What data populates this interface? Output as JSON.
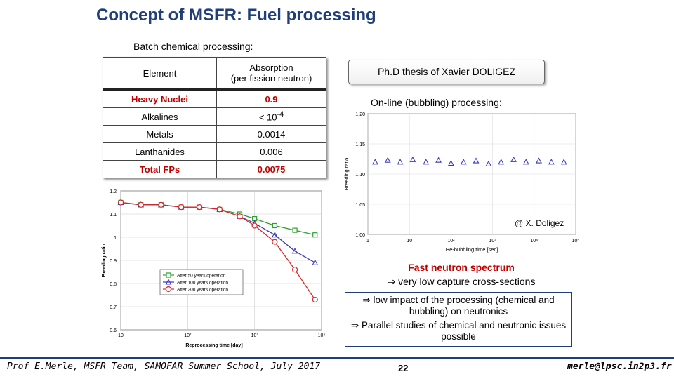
{
  "title": "Concept of MSFR: Fuel processing",
  "batch_label": "Batch chemical processing:",
  "table": {
    "headers": [
      "Element",
      "Absorption",
      "(per fission neutron)"
    ],
    "rows": [
      {
        "element": "Heavy Nuclei",
        "absorption": "0.9",
        "highlight": true
      },
      {
        "element": "Alkalines",
        "absorption": "< 10",
        "exp": "-4",
        "highlight": false
      },
      {
        "element": "Metals",
        "absorption": "0.0014",
        "highlight": false
      },
      {
        "element": "Lanthanides",
        "absorption": "0.006",
        "highlight": false
      },
      {
        "element": "Total FPs",
        "absorption": "0.0075",
        "highlight": true
      }
    ]
  },
  "thesis": "Ph.D thesis of Xavier DOLIGEZ",
  "online_label": "On-line (bubbling) processing:",
  "credit": "@ X. Doligez",
  "fast_title": "Fast neutron spectrum",
  "fast_line": "⇒ very low capture cross-sections",
  "box_lines": [
    "⇒ low impact of the processing (chemical and bubbling) on neutronics",
    "⇒ Parallel studies of chemical and neutronic issues possible"
  ],
  "footer": {
    "left": "Prof E.Merle, MSFR Team, SAMOFAR Summer School, July 2017",
    "page": "22",
    "right": "merle@lpsc.in2p3.fr"
  },
  "chart_data": [
    {
      "type": "line",
      "title": "",
      "xlabel": "Reprocessing time [day]",
      "ylabel": "Breeding ratio",
      "x_scale": "log",
      "xlim": [
        10,
        10000
      ],
      "ylim": [
        0.6,
        1.2
      ],
      "y_ticks": [
        "1.2",
        "1.1",
        "1",
        "0.9",
        "0.8",
        "0.7",
        "0.6"
      ],
      "x_ticks": [
        "10",
        "10²",
        "10³",
        "10⁴"
      ],
      "legend": "bottom-left",
      "x": [
        10,
        20,
        40,
        80,
        150,
        300,
        600,
        1000,
        2000,
        4000,
        8000
      ],
      "series": [
        {
          "name": "After 50 years operation",
          "color": "#2ca02c",
          "marker": "square",
          "values": [
            1.15,
            1.14,
            1.14,
            1.13,
            1.13,
            1.12,
            1.1,
            1.08,
            1.05,
            1.03,
            1.01
          ]
        },
        {
          "name": "After 100 years operation",
          "color": "#3b3bbf",
          "marker": "triangle",
          "values": [
            1.15,
            1.14,
            1.14,
            1.13,
            1.13,
            1.12,
            1.09,
            1.06,
            1.01,
            0.94,
            0.89
          ]
        },
        {
          "name": "After 200 years operation",
          "color": "#d62728",
          "marker": "circle",
          "values": [
            1.15,
            1.14,
            1.14,
            1.13,
            1.13,
            1.12,
            1.09,
            1.05,
            0.98,
            0.86,
            0.73
          ]
        }
      ]
    },
    {
      "type": "scatter",
      "title": "",
      "xlabel": "He-bubbling time [sec]",
      "ylabel": "Breeding ratio",
      "x_scale": "log",
      "xlim": [
        1,
        100000
      ],
      "ylim": [
        1.0,
        1.2
      ],
      "y_ticks": [
        "1.20",
        "1.15",
        "1.10",
        "1.05",
        "1.00"
      ],
      "x_ticks": [
        "1",
        "10",
        "10²",
        "10³",
        "10⁴",
        "10⁵"
      ],
      "series": [
        {
          "color": "#3b3bbf",
          "marker": "triangle",
          "x": [
            1.5,
            3,
            6,
            12,
            25,
            50,
            100,
            200,
            400,
            800,
            1600,
            3200,
            6400,
            13000,
            26000,
            52000
          ],
          "values": [
            1.12,
            1.123,
            1.12,
            1.124,
            1.12,
            1.123,
            1.118,
            1.12,
            1.122,
            1.117,
            1.12,
            1.124,
            1.12,
            1.122,
            1.12,
            1.12
          ]
        }
      ]
    }
  ]
}
